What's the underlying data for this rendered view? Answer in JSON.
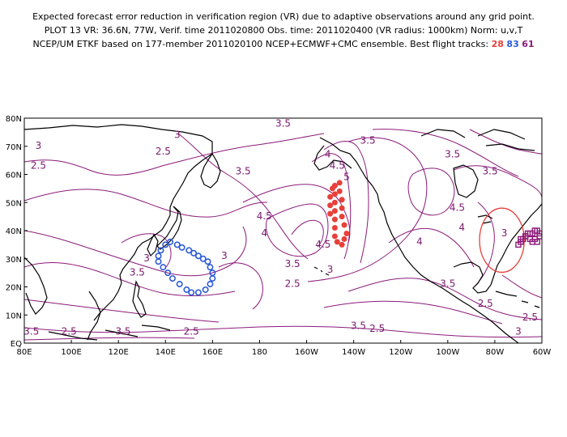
{
  "title": {
    "line1": "Expected forecast error reduction in verification region (VR) due to adaptive observations around any grid point.",
    "line2": "PLOT 13 VR: 36.6N, 77W, Verif. time 2011020800 Obs. time: 2011020400 (VR radius: 1000km) Norm: u,v,T",
    "line3_prefix": "NCEP/UM ETKF based on 177-member 2011020100 NCEP+ECMWF+CMC ensemble. Best flight tracks:",
    "track_numbers": [
      {
        "value": "28",
        "color": "#e8403a"
      },
      {
        "value": "83",
        "color": "#2e5bd8"
      },
      {
        "value": "61",
        "color": "#8c1a7a"
      }
    ]
  },
  "axes": {
    "lat_labels": [
      "80N",
      "70N",
      "60N",
      "50N",
      "40N",
      "30N",
      "20N",
      "10N",
      "EQ"
    ],
    "lon_labels": [
      "80E",
      "100E",
      "120E",
      "140E",
      "160E",
      "180",
      "160W",
      "140W",
      "120W",
      "100W",
      "80W",
      "60W"
    ]
  },
  "colors": {
    "contour": "#8c1a7a",
    "coast": "#000000",
    "track_red": "#e8403a",
    "track_blue": "#2e5bd8",
    "track_purple": "#8c1a7a",
    "vr_circle": "#e8403a"
  },
  "contour_labels": [
    {
      "text": "3",
      "lon": 145,
      "lat": 73
    },
    {
      "text": "3",
      "lon": 86,
      "lat": 69
    },
    {
      "text": "2.5",
      "lon": 86,
      "lat": 62
    },
    {
      "text": "2.5",
      "lon": 139,
      "lat": 67
    },
    {
      "text": "3.5",
      "lon": 190,
      "lat": 77
    },
    {
      "text": "3.5",
      "lon": 173,
      "lat": 60
    },
    {
      "text": "4.5",
      "lon": 213,
      "lat": 62
    },
    {
      "text": "3.5",
      "lon": 226,
      "lat": 71
    },
    {
      "text": "4",
      "lon": 209,
      "lat": 66
    },
    {
      "text": "5",
      "lon": 217,
      "lat": 58
    },
    {
      "text": "3.5",
      "lon": 262,
      "lat": 66
    },
    {
      "text": "3.5",
      "lon": 278,
      "lat": 60
    },
    {
      "text": "4.5",
      "lon": 264,
      "lat": 47
    },
    {
      "text": "4",
      "lon": 266,
      "lat": 40
    },
    {
      "text": "4.5",
      "lon": 182,
      "lat": 44
    },
    {
      "text": "4",
      "lon": 182,
      "lat": 38
    },
    {
      "text": "4.5",
      "lon": 207,
      "lat": 34
    },
    {
      "text": "4",
      "lon": 248,
      "lat": 35
    },
    {
      "text": "3",
      "lon": 284,
      "lat": 38
    },
    {
      "text": "3.5",
      "lon": 194,
      "lat": 27
    },
    {
      "text": "3",
      "lon": 210,
      "lat": 25
    },
    {
      "text": "2.5",
      "lon": 194,
      "lat": 20
    },
    {
      "text": "3.5",
      "lon": 260,
      "lat": 20
    },
    {
      "text": "2.5",
      "lon": 276,
      "lat": 13
    },
    {
      "text": "3",
      "lon": 132,
      "lat": 29
    },
    {
      "text": "3.5",
      "lon": 128,
      "lat": 24
    },
    {
      "text": "3",
      "lon": 165,
      "lat": 30
    },
    {
      "text": "2.5",
      "lon": 151,
      "lat": 3
    },
    {
      "text": "2.5",
      "lon": 230,
      "lat": 4
    },
    {
      "text": "3.5",
      "lon": 222,
      "lat": 5
    },
    {
      "text": "3.5",
      "lon": 83,
      "lat": 3
    },
    {
      "text": "2.5",
      "lon": 99,
      "lat": 3
    },
    {
      "text": "3.5",
      "lon": 122,
      "lat": 3
    },
    {
      "text": "2.5",
      "lon": 295,
      "lat": 8
    },
    {
      "text": "3",
      "lon": 290,
      "lat": 3
    }
  ],
  "tracks": {
    "red": [
      [
        212,
        56
      ],
      [
        212,
        53
      ],
      [
        212,
        50
      ],
      [
        212,
        47
      ],
      [
        212,
        44
      ],
      [
        212,
        41
      ],
      [
        212,
        38
      ],
      [
        213,
        36
      ],
      [
        215,
        35
      ],
      [
        216,
        37
      ],
      [
        217,
        39
      ],
      [
        216,
        42
      ],
      [
        215,
        45
      ],
      [
        215,
        48
      ],
      [
        215,
        51
      ],
      [
        214,
        54
      ],
      [
        214,
        57
      ],
      [
        211,
        55
      ],
      [
        210,
        52
      ],
      [
        210,
        49
      ],
      [
        210,
        46
      ]
    ],
    "blue": [
      [
        140,
        35
      ],
      [
        142,
        36
      ],
      [
        145,
        35
      ],
      [
        147,
        34
      ],
      [
        150,
        33
      ],
      [
        152,
        32
      ],
      [
        154,
        31
      ],
      [
        156,
        30
      ],
      [
        158,
        29
      ],
      [
        159,
        27
      ],
      [
        160,
        25
      ],
      [
        160,
        23
      ],
      [
        159,
        21
      ],
      [
        157,
        19
      ],
      [
        154,
        18
      ],
      [
        151,
        18
      ],
      [
        149,
        19
      ],
      [
        146,
        21
      ],
      [
        143,
        23
      ],
      [
        141,
        25
      ],
      [
        139,
        27
      ],
      [
        137,
        29
      ],
      [
        137,
        31
      ],
      [
        138,
        33
      ]
    ],
    "purple": [
      [
        290,
        35
      ],
      [
        291,
        36
      ],
      [
        292,
        37
      ],
      [
        293,
        38
      ],
      [
        294,
        39
      ],
      [
        295,
        39
      ],
      [
        296,
        39
      ],
      [
        297,
        40
      ],
      [
        298,
        40
      ],
      [
        299,
        39
      ],
      [
        299,
        38
      ],
      [
        297,
        37
      ],
      [
        295,
        37
      ],
      [
        293,
        38
      ],
      [
        291,
        37
      ],
      [
        296,
        36
      ],
      [
        298,
        36
      ]
    ]
  },
  "vr_center": {
    "lon": 283,
    "lat": 36.6,
    "radius_deg": 9.5
  }
}
